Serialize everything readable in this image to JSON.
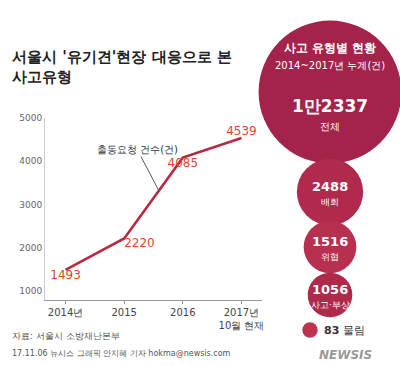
{
  "title": "서울시 '유기견'현장 대응으로 본\n사고유형",
  "source": "자료: 서울시 소방재난본부",
  "credit": "17.11.06 뉴시스 그래픽 안지혜 기자 hokma@newsis.com",
  "watermark": "NEWSIS",
  "chart_data": [
    {
      "type": "line",
      "categories": [
        "2014년",
        "2015",
        "2016",
        "2017년\n10월 현재"
      ],
      "series": [
        {
          "name": "출동요청 건수(건)",
          "color": "#b8283f",
          "values": [
            1493,
            2220,
            4085,
            4539
          ]
        }
      ],
      "ylim": [
        800,
        5000
      ],
      "yticks": [
        1000,
        2000,
        3000,
        4000,
        5000
      ],
      "grid": false,
      "data_labels": true
    },
    {
      "type": "bubble",
      "title": "사고 유형별 현황",
      "subtitle": "2014~2017년 누계(건)",
      "categories": [
        "전체",
        "배회",
        "위협",
        "사고·부상",
        "물림"
      ],
      "values": [
        12337,
        2488,
        1516,
        1056,
        83
      ],
      "value_labels": [
        "1만2337",
        "2488",
        "1516",
        "1056",
        "83"
      ],
      "colors": [
        "#a3234a",
        "#b02a4e",
        "#b8304f",
        "#ad2a4b",
        "#c0334f"
      ],
      "data_labels": true
    }
  ]
}
